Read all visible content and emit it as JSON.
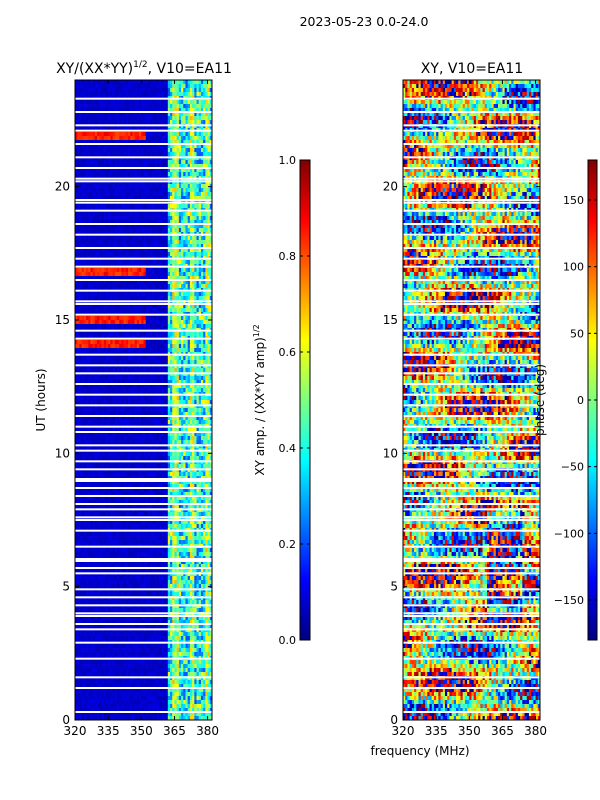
{
  "suptitle": "2023-05-23 0.0-24.0",
  "shared_xlabel": "frequency (MHz)",
  "colors": {
    "jet": [
      "#00007f",
      "#0000ff",
      "#007fff",
      "#00ffff",
      "#7fff7f",
      "#ffff00",
      "#ff7f00",
      "#ff0000",
      "#7f0000"
    ],
    "gap": "#ffffff",
    "axis": "#000000"
  },
  "chart_data": [
    {
      "type": "heatmap",
      "title_main": "XY/(XX*YY)",
      "title_sup": "1/2",
      "title_tail": ", V10=EA11",
      "xlabel": "",
      "ylabel": "UT (hours)",
      "xlim": [
        320,
        382
      ],
      "ylim": [
        0,
        24
      ],
      "xticks": [
        320,
        335,
        350,
        365,
        380
      ],
      "yticks": [
        0,
        5,
        10,
        15,
        20
      ],
      "colorbar": {
        "label_main": "XY amp. / (XX*YY amp)",
        "label_sup": "1/2",
        "range": [
          0.0,
          1.0
        ],
        "ticks": [
          0.0,
          0.2,
          0.4,
          0.6,
          0.8,
          1.0
        ],
        "tick_labels": [
          "0.0",
          "0.2",
          "0.4",
          "0.6",
          "0.8",
          "1.0"
        ]
      },
      "description_values": {
        "low_band_mhz": [
          320,
          362
        ],
        "low_band_value": 0.05,
        "high_band_mhz": [
          362,
          382
        ],
        "high_band_value_range": [
          0.2,
          0.55
        ],
        "outlier_rows_ut": [
          14.1,
          15.0,
          16.8,
          21.9
        ],
        "outlier_value": 0.9
      },
      "flagged_ut_hours": [
        0.3,
        1.2,
        1.6,
        2.3,
        2.9,
        3.4,
        3.6,
        3.9,
        4.0,
        4.3,
        4.6,
        4.9,
        5.5,
        5.7,
        6.0,
        6.5,
        7.1,
        7.5,
        7.6,
        7.9,
        8.1,
        8.4,
        8.7,
        9.0,
        9.4,
        9.7,
        10.1,
        10.3,
        10.8,
        11.0,
        11.4,
        11.8,
        12.2,
        12.6,
        13.0,
        13.3,
        13.7,
        14.3,
        14.6,
        15.2,
        15.6,
        15.7,
        16.1,
        16.5,
        17.0,
        17.3,
        17.7,
        18.2,
        18.6,
        19.1,
        19.4,
        19.5,
        20.2,
        20.3,
        20.7,
        21.1,
        21.6,
        22.1,
        22.3,
        22.8,
        23.3
      ]
    },
    {
      "type": "heatmap",
      "title_main": "XY, V10=EA11",
      "xlabel": "frequency (MHz)",
      "ylabel": "",
      "xlim": [
        320,
        382
      ],
      "ylim": [
        0,
        24
      ],
      "xticks": [
        320,
        335,
        350,
        365,
        380
      ],
      "yticks": [
        0,
        5,
        10,
        15,
        20
      ],
      "colorbar": {
        "label": "phase (deg)",
        "range": [
          -180,
          180
        ],
        "ticks": [
          -150,
          -100,
          -50,
          0,
          50,
          100,
          150
        ],
        "tick_labels": [
          "−150",
          "−100",
          "−50",
          "0",
          "50",
          "100",
          "150"
        ]
      },
      "description_values": {
        "phase_range_deg": [
          -180,
          180
        ],
        "dominant_phase_deg": 60
      },
      "flagged_ut_hours": [
        0.3,
        1.2,
        1.6,
        2.3,
        2.9,
        3.4,
        3.6,
        3.9,
        4.0,
        4.3,
        4.6,
        4.9,
        5.5,
        5.7,
        6.0,
        6.5,
        7.1,
        7.5,
        7.6,
        7.9,
        8.1,
        8.4,
        8.7,
        9.0,
        9.4,
        9.7,
        10.1,
        10.3,
        10.8,
        11.0,
        11.4,
        11.8,
        12.2,
        12.6,
        13.0,
        13.3,
        13.7,
        14.3,
        14.6,
        15.2,
        15.6,
        15.7,
        16.1,
        16.5,
        17.0,
        17.3,
        17.7,
        18.2,
        18.6,
        19.1,
        19.4,
        19.5,
        20.2,
        20.3,
        20.7,
        21.1,
        21.6,
        22.1,
        22.3,
        22.8,
        23.3
      ]
    }
  ]
}
